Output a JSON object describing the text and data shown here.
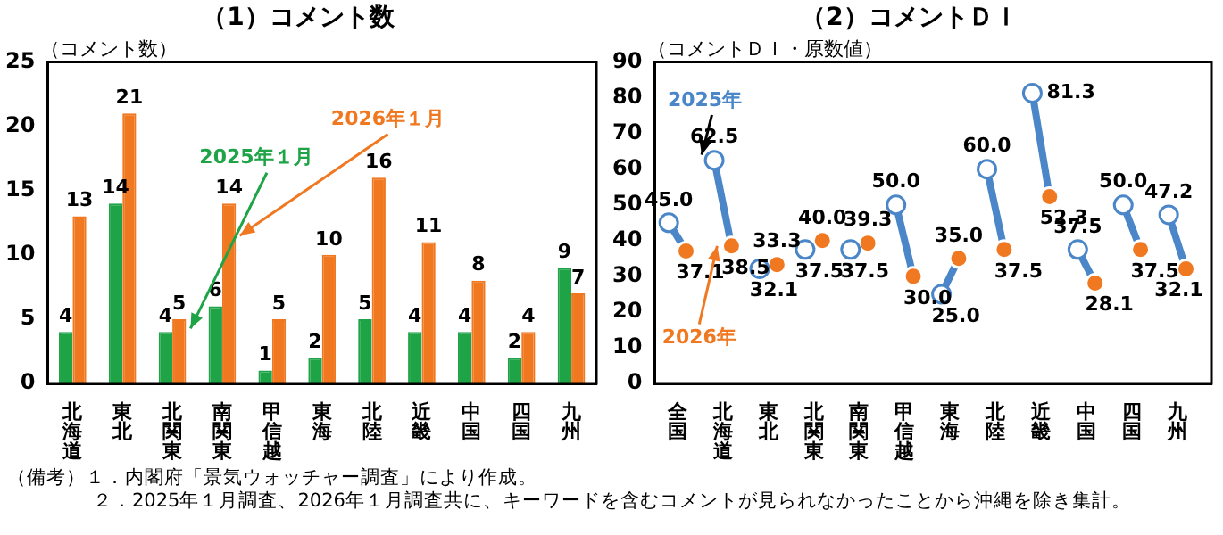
{
  "chart_data": [
    {
      "type": "bar",
      "title": "（1）コメント数",
      "ylabel": "（コメント数）",
      "categories": [
        "北海道",
        "東北",
        "北関東",
        "南関東",
        "甲信越",
        "東海",
        "北陸",
        "近畿",
        "中国",
        "四国",
        "九州"
      ],
      "series": [
        {
          "name": "2025年１月",
          "color": "#1fa347",
          "values": [
            4,
            14,
            4,
            6,
            1,
            2,
            5,
            4,
            4,
            2,
            9
          ]
        },
        {
          "name": "2026年１月",
          "color": "#f07820",
          "values": [
            13,
            21,
            5,
            14,
            5,
            10,
            16,
            11,
            8,
            4,
            7
          ]
        }
      ],
      "ylim": [
        0,
        25
      ],
      "yticks": [
        0,
        5,
        10,
        15,
        20,
        25
      ],
      "data_labels": true,
      "grid": false,
      "legend": false,
      "annotations": [
        "（備考）１．内閣府「景気ウォッチャー調査」により作成。",
        "２．2025年１月調査、2026年１月調査共に、キーワードを含むコメントが見られなかったことから沖縄を除き集計。"
      ]
    },
    {
      "type": "scatter",
      "title": "（2）コメントＤＩ",
      "ylabel": "（コメントＤＩ・原数値）",
      "categories": [
        "全国",
        "北海道",
        "東北",
        "北関東",
        "南関東",
        "甲信越",
        "東海",
        "北陸",
        "近畿",
        "中国",
        "四国",
        "九州"
      ],
      "series": [
        {
          "name": "2025年",
          "color": "#4a86c8",
          "values": [
            45.0,
            62.5,
            32.1,
            37.5,
            37.5,
            50.0,
            25.0,
            60.0,
            81.3,
            37.5,
            50.0,
            47.2
          ],
          "value_labels": [
            "45.0",
            "62.5",
            "32.1",
            "37.5",
            "37.5",
            "50.0",
            "25.0",
            "60.0",
            "81.3",
            "37.5",
            "50.0",
            "47.2"
          ]
        },
        {
          "name": "2026年",
          "color": "#f07820",
          "values": [
            37.1,
            38.5,
            33.3,
            40.0,
            39.3,
            30.0,
            35.0,
            37.5,
            52.3,
            28.1,
            37.5,
            32.1
          ],
          "value_labels": [
            "37.1",
            "38.5",
            "33.3",
            "40.0",
            "39.3",
            "30.0",
            "35.0",
            "37.5",
            "52.3",
            "28.1",
            "37.5",
            "32.1"
          ]
        }
      ],
      "ylim": [
        0,
        90
      ],
      "yticks": [
        0,
        10,
        20,
        30,
        40,
        50,
        60,
        70,
        80,
        90
      ],
      "data_labels": true,
      "grid": false,
      "legend": false,
      "marker": "circle"
    }
  ]
}
